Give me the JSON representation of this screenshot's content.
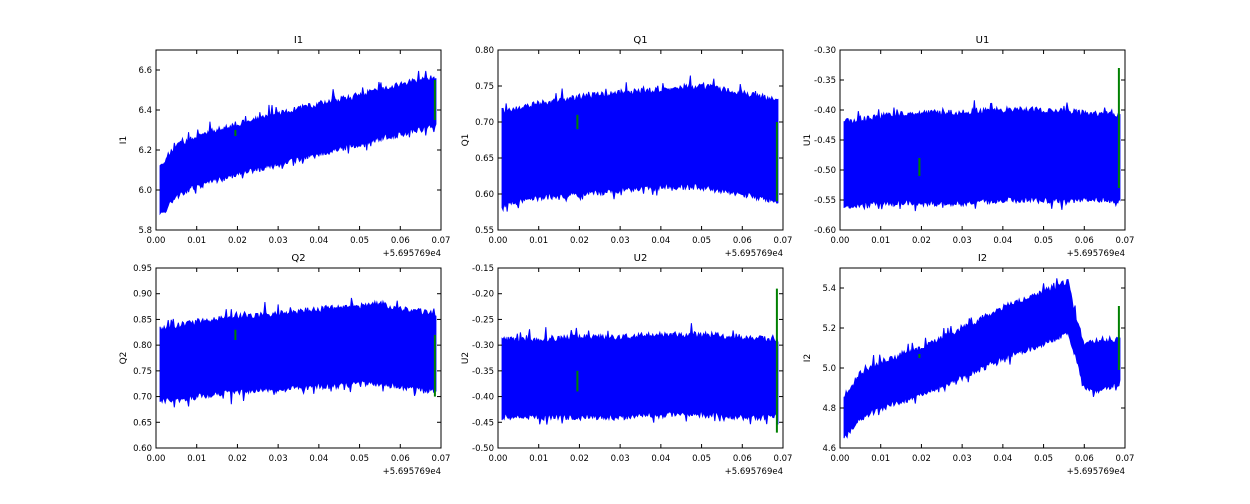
{
  "chart_data": [
    {
      "type": "area",
      "title": "I1",
      "ylabel": "I1",
      "xlim": [
        0,
        0.07
      ],
      "ylim": [
        5.8,
        6.7
      ],
      "xticks": [
        "0.00",
        "0.01",
        "0.02",
        "0.03",
        "0.04",
        "0.05",
        "0.06",
        "0.07"
      ],
      "yticks": [
        "5.8",
        "6.0",
        "6.2",
        "6.4",
        "6.6"
      ],
      "x_offset": "+5.695769e4",
      "band": {
        "x": [
          0.001,
          0.005,
          0.01,
          0.02,
          0.03,
          0.04,
          0.05,
          0.055,
          0.06,
          0.069
        ],
        "lower": [
          5.87,
          5.97,
          6.02,
          6.08,
          6.13,
          6.18,
          6.23,
          6.26,
          6.28,
          6.32
        ],
        "upper": [
          6.12,
          6.22,
          6.27,
          6.33,
          6.38,
          6.43,
          6.47,
          6.5,
          6.53,
          6.56
        ]
      },
      "green": [
        {
          "x": 0.0195,
          "y": [
            6.27,
            6.3
          ]
        },
        {
          "x": 0.0685,
          "y": [
            6.35,
            6.55
          ]
        }
      ]
    },
    {
      "type": "area",
      "title": "Q1",
      "ylabel": "Q1",
      "xlim": [
        0,
        0.07
      ],
      "ylim": [
        0.55,
        0.8
      ],
      "xticks": [
        "0.00",
        "0.01",
        "0.02",
        "0.03",
        "0.04",
        "0.05",
        "0.06",
        "0.07"
      ],
      "yticks": [
        "0.55",
        "0.60",
        "0.65",
        "0.70",
        "0.75",
        "0.80"
      ],
      "x_offset": "+5.695769e4",
      "band": {
        "x": [
          0.001,
          0.01,
          0.02,
          0.03,
          0.04,
          0.05,
          0.06,
          0.069
        ],
        "lower": [
          0.585,
          0.595,
          0.6,
          0.605,
          0.61,
          0.61,
          0.6,
          0.59
        ],
        "upper": [
          0.715,
          0.725,
          0.735,
          0.74,
          0.745,
          0.75,
          0.74,
          0.73
        ]
      },
      "green": [
        {
          "x": 0.0195,
          "y": [
            0.69,
            0.71
          ]
        },
        {
          "x": 0.0685,
          "y": [
            0.59,
            0.7
          ]
        }
      ]
    },
    {
      "type": "area",
      "title": "U1",
      "ylabel": "U1",
      "xlim": [
        0,
        0.07
      ],
      "ylim": [
        -0.6,
        -0.3
      ],
      "xticks": [
        "0.00",
        "0.01",
        "0.02",
        "0.03",
        "0.04",
        "0.05",
        "0.06",
        "0.07"
      ],
      "yticks": [
        "-0.60",
        "-0.55",
        "-0.50",
        "-0.45",
        "-0.40",
        "-0.35",
        "-0.30"
      ],
      "x_offset": "+5.695769e4",
      "band": {
        "x": [
          0.001,
          0.01,
          0.02,
          0.03,
          0.04,
          0.05,
          0.06,
          0.069
        ],
        "lower": [
          -0.56,
          -0.555,
          -0.555,
          -0.555,
          -0.55,
          -0.55,
          -0.55,
          -0.55
        ],
        "upper": [
          -0.42,
          -0.41,
          -0.405,
          -0.405,
          -0.4,
          -0.4,
          -0.405,
          -0.41
        ]
      },
      "green": [
        {
          "x": 0.0195,
          "y": [
            -0.51,
            -0.48
          ]
        },
        {
          "x": 0.0685,
          "y": [
            -0.53,
            -0.33
          ]
        }
      ]
    },
    {
      "type": "area",
      "title": "Q2",
      "ylabel": "Q2",
      "xlim": [
        0,
        0.07
      ],
      "ylim": [
        0.6,
        0.95
      ],
      "xticks": [
        "0.00",
        "0.01",
        "0.02",
        "0.03",
        "0.04",
        "0.05",
        "0.06",
        "0.07"
      ],
      "yticks": [
        "0.60",
        "0.65",
        "0.70",
        "0.75",
        "0.80",
        "0.85",
        "0.90",
        "0.95"
      ],
      "x_offset": "+5.695769e4",
      "band": {
        "x": [
          0.001,
          0.01,
          0.02,
          0.03,
          0.04,
          0.05,
          0.055,
          0.06,
          0.069
        ],
        "lower": [
          0.69,
          0.7,
          0.71,
          0.715,
          0.72,
          0.725,
          0.725,
          0.72,
          0.71
        ],
        "upper": [
          0.83,
          0.845,
          0.855,
          0.86,
          0.87,
          0.875,
          0.88,
          0.87,
          0.86
        ]
      },
      "green": [
        {
          "x": 0.0195,
          "y": [
            0.81,
            0.83
          ]
        },
        {
          "x": 0.0685,
          "y": [
            0.7,
            0.82
          ]
        }
      ]
    },
    {
      "type": "area",
      "title": "U2",
      "ylabel": "U2",
      "xlim": [
        0,
        0.07
      ],
      "ylim": [
        -0.5,
        -0.15
      ],
      "xticks": [
        "0.00",
        "0.01",
        "0.02",
        "0.03",
        "0.04",
        "0.05",
        "0.06",
        "0.07"
      ],
      "yticks": [
        "-0.50",
        "-0.45",
        "-0.40",
        "-0.35",
        "-0.30",
        "-0.25",
        "-0.20",
        "-0.15"
      ],
      "x_offset": "+5.695769e4",
      "band": {
        "x": [
          0.001,
          0.01,
          0.02,
          0.03,
          0.04,
          0.05,
          0.06,
          0.069
        ],
        "lower": [
          -0.44,
          -0.44,
          -0.44,
          -0.44,
          -0.435,
          -0.435,
          -0.44,
          -0.44
        ],
        "upper": [
          -0.29,
          -0.29,
          -0.285,
          -0.285,
          -0.28,
          -0.28,
          -0.285,
          -0.29
        ]
      },
      "green": [
        {
          "x": 0.0195,
          "y": [
            -0.39,
            -0.35
          ]
        },
        {
          "x": 0.0685,
          "y": [
            -0.47,
            -0.19
          ]
        }
      ]
    },
    {
      "type": "area",
      "title": "I2",
      "ylabel": "I2",
      "xlim": [
        0,
        0.07
      ],
      "ylim": [
        4.6,
        5.5
      ],
      "xticks": [
        "0.00",
        "0.01",
        "0.02",
        "0.03",
        "0.04",
        "0.05",
        "0.06",
        "0.07"
      ],
      "yticks": [
        "4.6",
        "4.8",
        "5.0",
        "5.2",
        "5.4"
      ],
      "x_offset": "+5.695769e4",
      "band": {
        "x": [
          0.001,
          0.005,
          0.01,
          0.02,
          0.03,
          0.04,
          0.05,
          0.056,
          0.058,
          0.06,
          0.063,
          0.069
        ],
        "lower": [
          4.65,
          4.75,
          4.8,
          4.87,
          4.95,
          5.05,
          5.12,
          5.18,
          5.05,
          4.9,
          4.88,
          4.93
        ],
        "upper": [
          4.86,
          4.97,
          5.03,
          5.1,
          5.2,
          5.3,
          5.38,
          5.43,
          5.25,
          5.12,
          5.14,
          5.14
        ]
      },
      "green": [
        {
          "x": 0.0195,
          "y": [
            5.05,
            5.07
          ]
        },
        {
          "x": 0.0685,
          "y": [
            4.99,
            5.31
          ]
        }
      ]
    }
  ],
  "colors": {
    "series": "#0000ff",
    "marker": "#008000"
  }
}
